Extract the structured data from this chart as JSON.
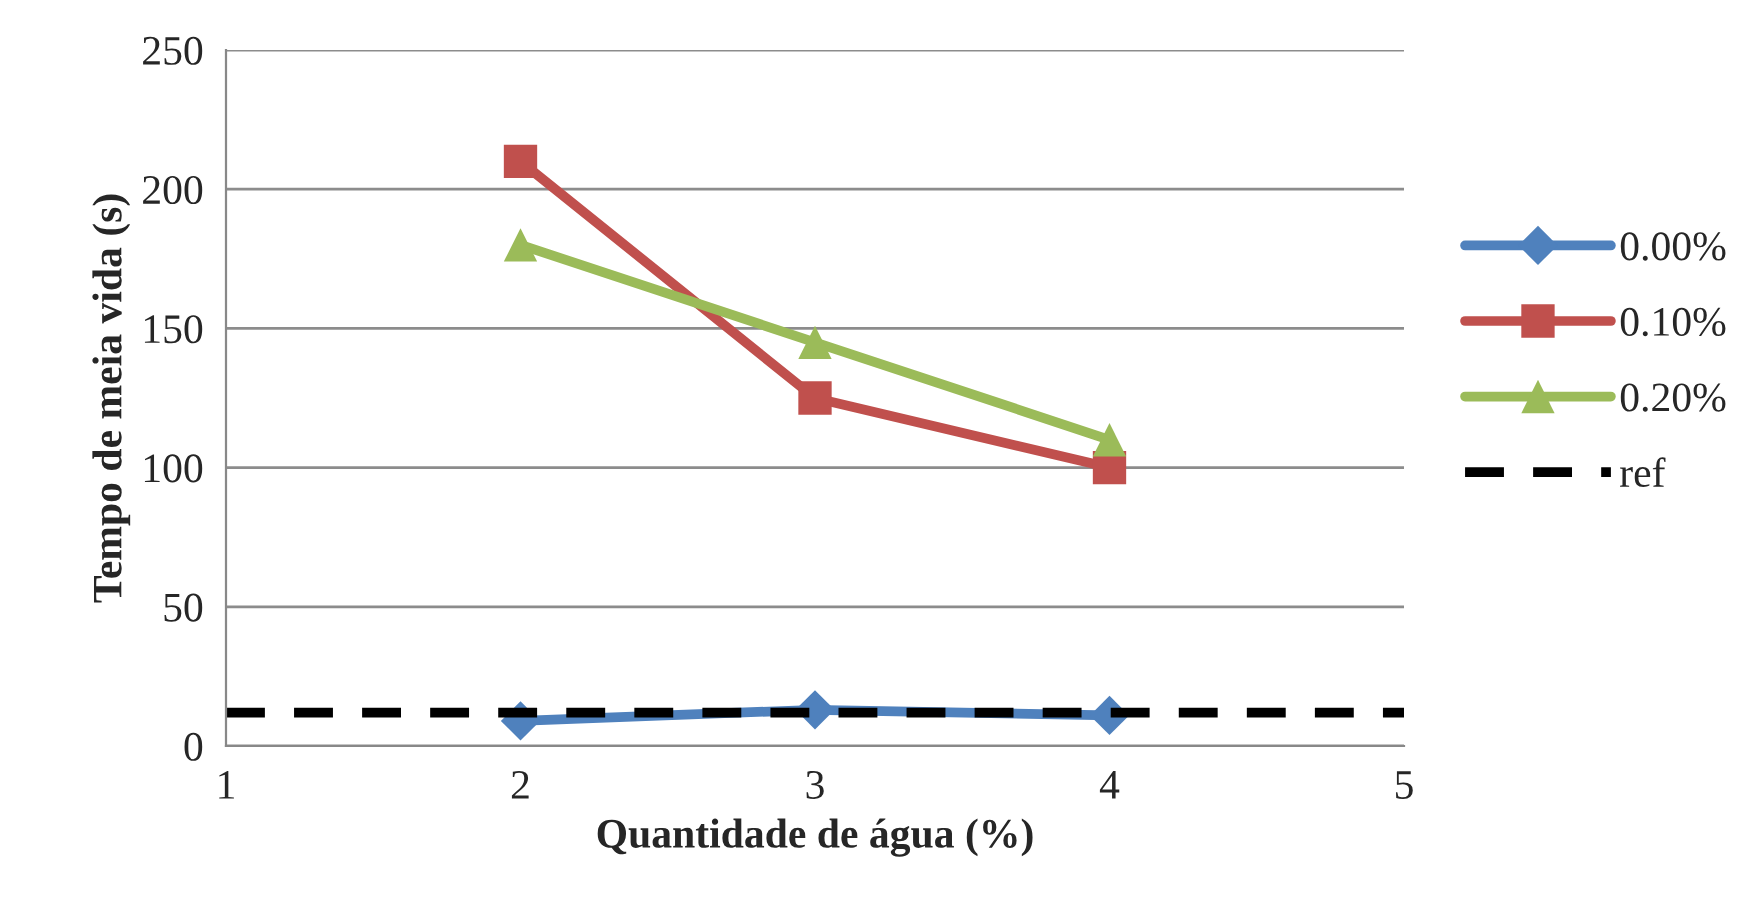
{
  "chart_data": {
    "type": "line",
    "xlabel": "Quantidade de água (%)",
    "ylabel": "Tempo de meia vida (s)",
    "x": [
      2,
      3,
      4
    ],
    "series": [
      {
        "name": "0.00%",
        "color": "#4f81bd",
        "values": [
          9,
          13,
          11
        ],
        "marker": "diamond"
      },
      {
        "name": "0.10%",
        "color": "#c0504d",
        "values": [
          210,
          125,
          100
        ],
        "marker": "square"
      },
      {
        "name": "0.20%",
        "color": "#9bbb59",
        "values": [
          180,
          145,
          110
        ],
        "marker": "triangle"
      },
      {
        "name": "ref",
        "color": "#000000",
        "x": [
          1,
          5
        ],
        "values": [
          12,
          12
        ],
        "marker": "none",
        "line_style": "dashed"
      }
    ],
    "xlim": [
      1,
      5
    ],
    "xticks": [
      1,
      2,
      3,
      4,
      5
    ],
    "ylim": [
      0,
      250
    ],
    "yticks": [
      0,
      50,
      100,
      150,
      200,
      250
    ],
    "grid": "y",
    "legend": "right"
  }
}
